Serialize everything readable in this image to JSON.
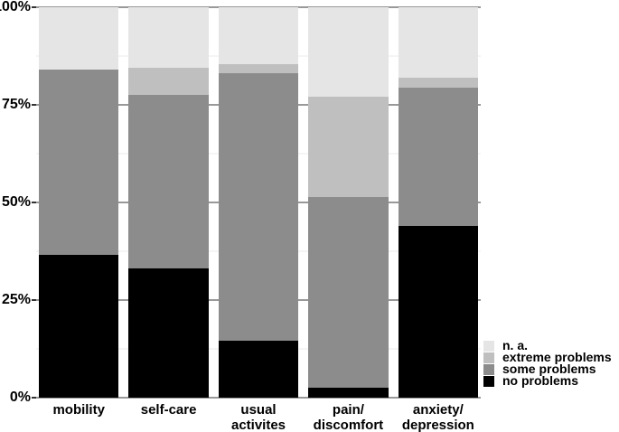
{
  "chart_data": {
    "type": "bar",
    "stacked": true,
    "units": "percent",
    "title": "",
    "xlabel": "",
    "ylabel": "",
    "ylim": [
      0,
      100
    ],
    "categories": [
      "mobility",
      "self-care",
      "usual\nactivites",
      "pain/\ndiscomfort",
      "anxiety/\ndepression"
    ],
    "series": [
      {
        "name": "no problems",
        "color": "#000000",
        "values": [
          36.5,
          33,
          14.5,
          2.5,
          44
        ]
      },
      {
        "name": "some problems",
        "color": "#8c8c8c",
        "values": [
          47.5,
          44.5,
          68.5,
          49,
          35.5
        ]
      },
      {
        "name": "extreme problems",
        "color": "#bfbfbf",
        "values": [
          0,
          7,
          2.5,
          25.5,
          2.5
        ]
      },
      {
        "name": "n. a.",
        "color": "#e5e5e5",
        "values": [
          16,
          15.5,
          14.5,
          23,
          18
        ]
      }
    ],
    "yticks": [
      "0%",
      "25%",
      "50%",
      "75%",
      "100%"
    ],
    "ytick_values": [
      0,
      25,
      50,
      75,
      100
    ],
    "grid": {
      "major_color": "#999999",
      "minor_color": "#ebebeb",
      "minor_values": [
        12.5,
        37.5,
        62.5,
        87.5
      ]
    },
    "legend": {
      "position": "bottom-right",
      "order_top_to_bottom": [
        "n. a.",
        "extreme problems",
        "some problems",
        "no problems"
      ]
    }
  }
}
